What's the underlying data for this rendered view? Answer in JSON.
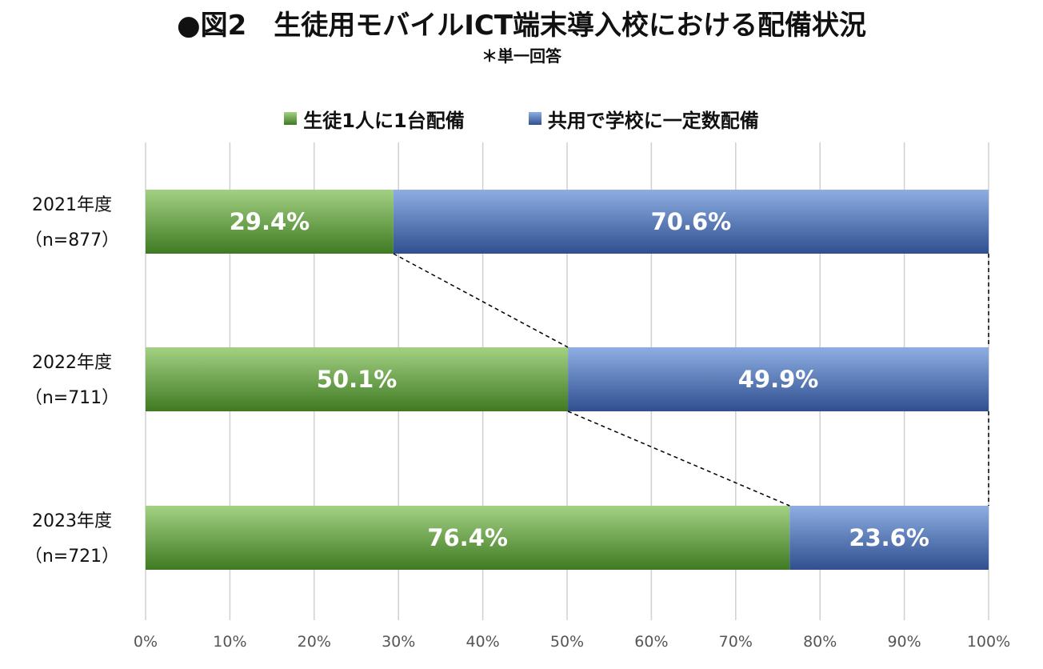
{
  "title": "●図2　生徒用モバイルICT端末導入校における配備状況",
  "subtitle": "＊単一回答",
  "colors": {
    "green_light": "#a3d183",
    "green_dark": "#3f7a22",
    "blue_light": "#8eaee3",
    "blue_dark": "#2f4f8f",
    "grid": "#d0d0d0"
  },
  "chart_data": {
    "type": "bar",
    "orientation": "horizontal",
    "stacked": true,
    "categories": [
      {
        "year": "2021年度",
        "n": "（n=877）"
      },
      {
        "year": "2022年度",
        "n": "（n=711）"
      },
      {
        "year": "2023年度",
        "n": "（n=721）"
      }
    ],
    "series": [
      {
        "name": "生徒1人に1台配備",
        "values": [
          29.4,
          50.1,
          76.4
        ],
        "labels": [
          "29.4%",
          "50.1%",
          "76.4%"
        ]
      },
      {
        "name": "共用で学校に一定数配備",
        "values": [
          70.6,
          49.9,
          23.6
        ],
        "labels": [
          "70.6%",
          "49.9%",
          "23.6%"
        ]
      }
    ],
    "xlim": [
      0,
      100
    ],
    "xticks": [
      "0%",
      "10%",
      "20%",
      "30%",
      "40%",
      "50%",
      "60%",
      "70%",
      "80%",
      "90%",
      "100%"
    ],
    "grid": true,
    "legend": "top-center",
    "connector_lines": "dashed"
  }
}
